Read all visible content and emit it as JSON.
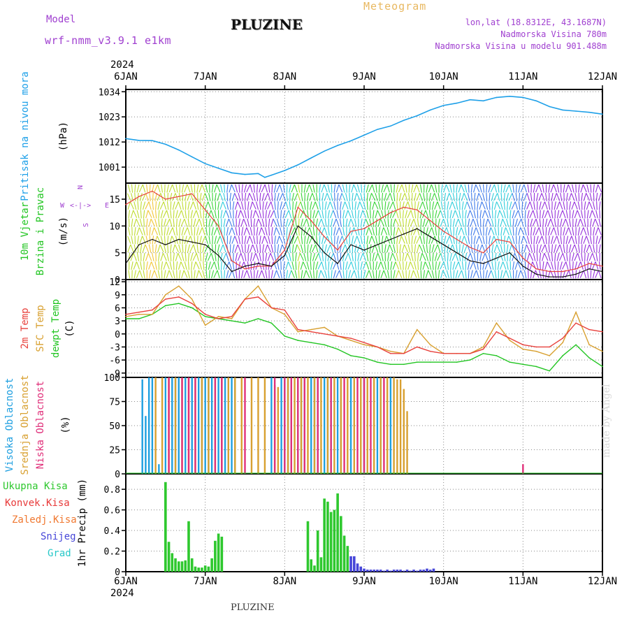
{
  "header": {
    "model_label": "Model",
    "model_name": "wrf-nmm_v3.9.1 e1km",
    "title": "PLUZINE",
    "chart_kind": "Meteogram",
    "lonlat": "lon,lat (18.8312E, 43.1687N)",
    "altitude": "Nadmorska Visina 780m",
    "model_altitude": "Nadmorska Visina u modelu 901.488m",
    "footer_title": "PLUZINE",
    "watermark": "made by Angel"
  },
  "colors": {
    "pressure": "#1ea0e8",
    "temp2m": "#e8413c",
    "sfc_temp": "#d8a030",
    "dewpt": "#22c522",
    "high_cloud": "#1e9fe0",
    "mid_cloud": "#d8a030",
    "low_cloud": "#e0307a",
    "total_precip": "#2ec82e",
    "conv_precip": "#e83a3a",
    "frz_precip": "#f07830",
    "snow": "#4646d8",
    "graupel": "#28c8c8",
    "label_purple": "#a040d0",
    "label_orange": "#e8b860"
  },
  "chart_data": [
    {
      "type": "line",
      "panel": "pressure",
      "ylabel_lines": [
        "Pritisak na nivou mora",
        "(hPa)"
      ],
      "x_ticks": [
        "6JAN",
        "7JAN",
        "8JAN",
        "9JAN",
        "10JAN",
        "11JAN",
        "12JAN"
      ],
      "year": "2024",
      "xlim": [
        0,
        144
      ],
      "ylim": [
        994,
        1035
      ],
      "y_ticks": [
        1001,
        1012,
        1023,
        1034
      ],
      "grid": true,
      "series": [
        {
          "key": "pressure",
          "x": [
            0,
            4,
            8,
            12,
            16,
            20,
            24,
            28,
            32,
            36,
            40,
            42,
            44,
            48,
            52,
            56,
            60,
            64,
            68,
            72,
            76,
            80,
            84,
            88,
            92,
            96,
            100,
            104,
            108,
            112,
            116,
            120,
            124,
            128,
            132,
            136,
            140,
            144
          ],
          "values": [
            1013.5,
            1012.7,
            1012.6,
            1011,
            1008.5,
            1005.5,
            1002.5,
            1000.5,
            998.5,
            997.8,
            998.2,
            996.5,
            997.5,
            999.5,
            1002,
            1005,
            1008,
            1010.5,
            1012.5,
            1015,
            1017.5,
            1019,
            1021.5,
            1023.5,
            1026,
            1028,
            1029,
            1030.5,
            1030,
            1031.5,
            1032,
            1031.5,
            1030,
            1027.5,
            1026,
            1025.5,
            1025,
            1024.2
          ]
        }
      ]
    },
    {
      "type": "line",
      "panel": "wind",
      "ylabel_lines": [
        "10m Vjetar",
        "Brzina i Pravac",
        "(m/s)"
      ],
      "compass": [
        "N",
        "W",
        "<-|->",
        "E",
        "S"
      ],
      "xlim": [
        0,
        144
      ],
      "ylim": [
        0,
        18
      ],
      "y_ticks": [
        0,
        5,
        10,
        15
      ],
      "grid": true,
      "series": [
        {
          "key": "wind_speed_black",
          "x": [
            0,
            4,
            8,
            12,
            16,
            20,
            24,
            28,
            32,
            36,
            40,
            44,
            48,
            52,
            56,
            60,
            64,
            68,
            72,
            76,
            80,
            84,
            88,
            92,
            96,
            100,
            104,
            108,
            112,
            116,
            120,
            124,
            128,
            132,
            136,
            140,
            144
          ],
          "values": [
            3,
            6.5,
            7.5,
            6.5,
            7.5,
            7,
            6.5,
            4.5,
            1.5,
            2.5,
            3,
            2.5,
            4.5,
            10,
            8,
            5,
            3,
            6.5,
            5.5,
            6.5,
            7.5,
            8.5,
            9.5,
            8,
            6.5,
            5,
            3.5,
            3,
            4,
            5,
            2.5,
            1,
            0.5,
            0.5,
            1,
            2,
            1.5
          ]
        },
        {
          "key": "wind_gust_red",
          "x": [
            0,
            4,
            8,
            12,
            16,
            20,
            24,
            28,
            32,
            36,
            40,
            44,
            48,
            52,
            56,
            60,
            64,
            68,
            72,
            76,
            80,
            84,
            88,
            92,
            96,
            100,
            104,
            108,
            112,
            116,
            120,
            124,
            128,
            132,
            136,
            140,
            144
          ],
          "values": [
            14,
            15.5,
            16.5,
            15,
            15.5,
            16,
            13,
            10,
            3.5,
            2,
            2.5,
            2.5,
            5.5,
            13.5,
            11,
            8,
            5.5,
            9,
            9.5,
            11,
            12.5,
            13.5,
            13,
            11,
            9,
            7.5,
            6,
            5,
            7.5,
            7,
            4,
            2,
            1.5,
            1.5,
            2,
            3,
            2.5
          ]
        }
      ]
    },
    {
      "type": "line",
      "panel": "temperature",
      "ylabel_lines": [
        "2m Temp",
        "SFC Temp",
        "dewpt Temp",
        "(C)"
      ],
      "xlim": [
        0,
        144
      ],
      "ylim": [
        -10,
        12.5
      ],
      "y_ticks": [
        -9,
        -6,
        -3,
        0,
        3,
        6,
        9,
        12
      ],
      "grid": true,
      "series": [
        {
          "key": "temp2m",
          "x": [
            0,
            4,
            8,
            12,
            16,
            20,
            24,
            28,
            32,
            36,
            40,
            44,
            48,
            52,
            56,
            60,
            64,
            68,
            72,
            76,
            80,
            84,
            88,
            92,
            96,
            100,
            104,
            108,
            112,
            116,
            120,
            124,
            128,
            132,
            136,
            140,
            144
          ],
          "values": [
            4.5,
            5,
            5.5,
            8,
            8.5,
            7,
            4.5,
            3.5,
            4,
            8,
            8.5,
            6,
            5.5,
            1,
            0.5,
            0,
            -0.5,
            -1,
            -2,
            -3,
            -4.5,
            -4.5,
            -3,
            -4,
            -4.5,
            -4.5,
            -4.5,
            -3.5,
            0.5,
            -1,
            -2.5,
            -3,
            -3,
            -1,
            2.5,
            1,
            0.5
          ]
        },
        {
          "key": "sfc_temp",
          "x": [
            0,
            4,
            8,
            12,
            16,
            20,
            24,
            28,
            32,
            36,
            40,
            44,
            48,
            52,
            56,
            60,
            64,
            68,
            72,
            76,
            80,
            84,
            88,
            92,
            96,
            100,
            104,
            108,
            112,
            116,
            120,
            124,
            128,
            132,
            136,
            140,
            144
          ],
          "values": [
            4,
            4.5,
            4.5,
            9,
            11,
            8,
            2,
            4,
            3.5,
            8,
            11,
            6,
            4.5,
            0.5,
            1,
            1.5,
            -0.5,
            -1.5,
            -2.5,
            -3,
            -4,
            -4.5,
            1,
            -2.5,
            -4.5,
            -4.5,
            -4.5,
            -3,
            2.5,
            -1.5,
            -3.5,
            -4,
            -5,
            -2,
            5,
            -2.5,
            -4
          ]
        },
        {
          "key": "dewpt",
          "x": [
            0,
            4,
            8,
            12,
            16,
            20,
            24,
            28,
            32,
            36,
            40,
            44,
            48,
            52,
            56,
            60,
            64,
            68,
            72,
            76,
            80,
            84,
            88,
            92,
            96,
            100,
            104,
            108,
            112,
            116,
            120,
            124,
            128,
            132,
            136,
            140,
            144
          ],
          "values": [
            3.5,
            3.5,
            4.5,
            6.5,
            7,
            6,
            4,
            3.5,
            3,
            2.5,
            3.5,
            2.5,
            -0.5,
            -1.5,
            -2,
            -2.5,
            -3.5,
            -5,
            -5.5,
            -6.5,
            -7,
            -7,
            -6.5,
            -6.5,
            -6.5,
            -6.5,
            -6,
            -4.5,
            -5,
            -6.5,
            -7,
            -7.5,
            -8.5,
            -5,
            -2.5,
            -5.5,
            -7.5
          ]
        }
      ]
    },
    {
      "type": "bar",
      "panel": "cloud",
      "ylabel_lines": [
        "Visoka Oblacnost",
        "Srednja Oblacnost",
        "Niska Oblacnost",
        "(%)"
      ],
      "xlim": [
        0,
        144
      ],
      "ylim": [
        0,
        100
      ],
      "y_ticks": [
        0,
        25,
        50,
        75,
        100
      ],
      "grid": true,
      "series": [
        {
          "key": "high_cloud",
          "x": [
            5,
            6,
            7,
            8,
            10,
            12,
            14,
            15,
            16,
            18,
            20,
            22,
            23,
            24,
            25,
            26,
            28,
            29,
            30,
            31,
            32,
            33,
            44,
            47,
            48,
            49,
            50,
            52,
            53,
            54,
            56,
            57,
            58,
            60,
            61,
            62,
            64,
            65,
            68,
            72,
            76,
            77,
            80
          ],
          "values": [
            98,
            60,
            100,
            100,
            10,
            100,
            100,
            100,
            100,
            100,
            100,
            100,
            100,
            100,
            100,
            100,
            100,
            100,
            100,
            100,
            100,
            100,
            100,
            100,
            100,
            100,
            100,
            100,
            100,
            100,
            100,
            100,
            100,
            100,
            100,
            100,
            100,
            100,
            100,
            100,
            100,
            100,
            100
          ]
        },
        {
          "key": "mid_cloud",
          "x": [
            9,
            11,
            13,
            15,
            17,
            19,
            21,
            23,
            25,
            27,
            29,
            31,
            33,
            35,
            38,
            40,
            42,
            45,
            46,
            49,
            51,
            53,
            55,
            57,
            59,
            61,
            63,
            65,
            67,
            69,
            71,
            73,
            75,
            77,
            79,
            81,
            82,
            83,
            84,
            85
          ],
          "values": [
            100,
            100,
            100,
            100,
            100,
            100,
            100,
            100,
            100,
            100,
            100,
            100,
            100,
            100,
            100,
            100,
            100,
            92,
            90,
            100,
            100,
            100,
            100,
            100,
            100,
            100,
            100,
            100,
            100,
            100,
            100,
            100,
            100,
            100,
            100,
            100,
            98,
            98,
            88,
            65
          ]
        },
        {
          "key": "low_cloud",
          "x": [
            13,
            17,
            19,
            21,
            27,
            29,
            36,
            45,
            48,
            50,
            52,
            54,
            58,
            62,
            66,
            70,
            72,
            74,
            78,
            120
          ],
          "values": [
            100,
            100,
            100,
            100,
            100,
            100,
            100,
            100,
            100,
            100,
            100,
            100,
            100,
            100,
            100,
            100,
            100,
            100,
            100,
            10
          ]
        }
      ]
    },
    {
      "type": "bar",
      "panel": "precip",
      "ylabel_lines": [
        "1hr Precip (mm)"
      ],
      "legend": [
        "Ukupna Kisa",
        "Konvek.Kisa",
        "Zaledj.Kisa",
        "Snijeg",
        "Grad"
      ],
      "xlim": [
        0,
        144
      ],
      "ylim": [
        0,
        0.95
      ],
      "y_ticks": [
        0,
        0.2,
        0.4,
        0.6,
        0.8
      ],
      "grid": true,
      "series": [
        {
          "key": "total_precip",
          "x": [
            12,
            13,
            14,
            15,
            16,
            17,
            18,
            19,
            20,
            21,
            22,
            23,
            24,
            25,
            26,
            27,
            28,
            29,
            55,
            56,
            57,
            58,
            59,
            60,
            61,
            62,
            63,
            64,
            65,
            66,
            67
          ],
          "values": [
            0.87,
            0.29,
            0.18,
            0.13,
            0.1,
            0.1,
            0.11,
            0.49,
            0.13,
            0.05,
            0.04,
            0.04,
            0.06,
            0.05,
            0.13,
            0.3,
            0.37,
            0.34,
            0.49,
            0.12,
            0.06,
            0.4,
            0.14,
            0.71,
            0.68,
            0.58,
            0.6,
            0.76,
            0.54,
            0.35,
            0.25
          ]
        },
        {
          "key": "snow",
          "x": [
            68,
            69,
            70,
            71,
            72,
            73,
            74,
            75,
            76,
            77,
            78,
            79,
            80,
            81,
            82,
            83,
            84,
            85,
            86,
            87,
            88,
            89,
            90,
            91,
            92,
            93
          ],
          "values": [
            0.15,
            0.15,
            0.08,
            0.05,
            0.03,
            0.02,
            0.02,
            0.02,
            0.02,
            0.02,
            0.01,
            0.02,
            0.01,
            0.02,
            0.02,
            0.02,
            0.01,
            0.02,
            0.01,
            0.02,
            0.01,
            0.02,
            0.02,
            0.03,
            0.02,
            0.03
          ]
        }
      ]
    }
  ]
}
